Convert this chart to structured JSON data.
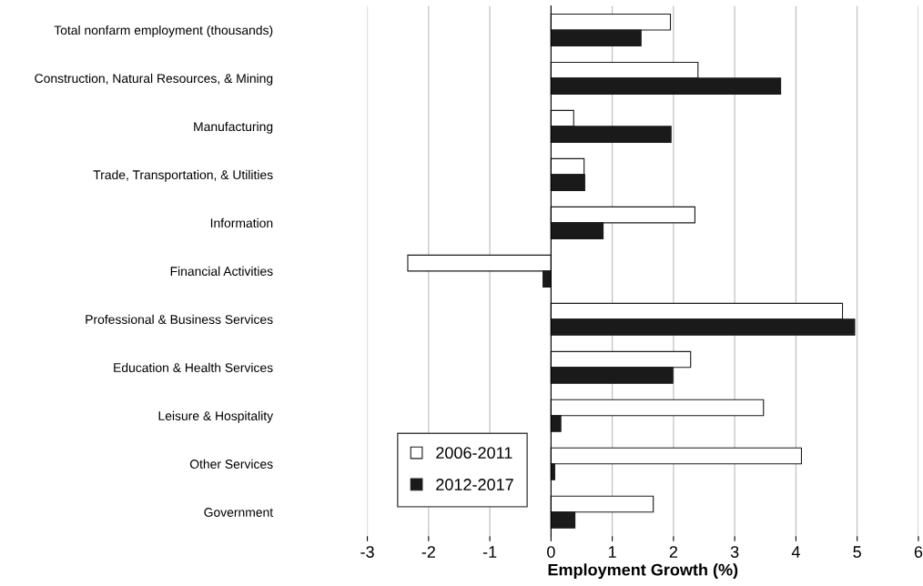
{
  "chart_data": {
    "type": "bar",
    "orientation": "horizontal",
    "xlabel": "Employment Growth (%)",
    "categories": [
      "Total nonfarm employment (thousands)",
      "Construction, Natural Resources, & Mining",
      "Manufacturing",
      "Trade, Transportation, & Utilities",
      "Information",
      "Financial Activities",
      "Professional & Business Services",
      "Education & Health Services",
      "Leisure & Hospitality",
      "Other Services",
      "Government"
    ],
    "series": [
      {
        "name": "2006-2011",
        "color": "#ffffff",
        "values": [
          1.95,
          2.4,
          0.37,
          0.54,
          2.35,
          -2.34,
          4.76,
          2.28,
          3.47,
          4.09,
          1.67
        ]
      },
      {
        "name": "2012-2017",
        "color": "#1a1a1a",
        "values": [
          1.47,
          3.75,
          1.96,
          0.55,
          0.85,
          -0.13,
          4.96,
          1.99,
          0.16,
          0.06,
          0.39
        ]
      }
    ],
    "xlim": [
      -3,
      6
    ],
    "xticks": [
      -3,
      -2,
      -1,
      0,
      1,
      2,
      3,
      4,
      5,
      6
    ],
    "grid": "x",
    "legend": "bottom left"
  }
}
